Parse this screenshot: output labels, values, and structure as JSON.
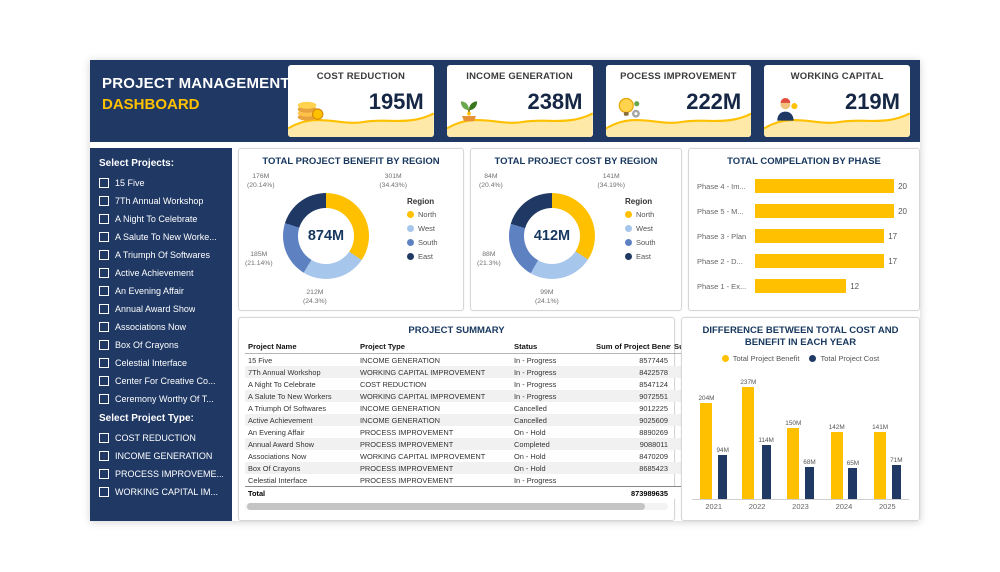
{
  "header": {
    "title_line1": "PROJECT MANAGEMENT",
    "title_line2": "DASHBOARD"
  },
  "colors": {
    "navy": "#1F3864",
    "gold": "#FFC000",
    "wave_fill": "#FFE9A8"
  },
  "kpis": [
    {
      "label": "COST REDUCTION",
      "value": "195M",
      "icon": "coins-icon"
    },
    {
      "label": "INCOME GENERATION",
      "value": "238M",
      "icon": "money-plant-icon"
    },
    {
      "label": "POCESS IMPROVEMENT",
      "value": "222M",
      "icon": "idea-gear-icon"
    },
    {
      "label": "WORKING CAPITAL",
      "value": "219M",
      "icon": "worker-gear-icon"
    }
  ],
  "sidebar": {
    "projects_label": "Select Projects:",
    "projects": [
      "15 Five",
      "7Th Annual Workshop",
      "A Night To Celebrate",
      "A Salute To New Worke...",
      "A Triumph Of Softwares",
      "Active Achievement",
      "An Evening Affair",
      "Annual Award Show",
      "Associations Now",
      "Box Of Crayons",
      "Celestial Interface",
      "Center For Creative Co...",
      "Ceremony Worthy Of T..."
    ],
    "types_label": "Select Project Type:",
    "types": [
      "COST REDUCTION",
      "INCOME GENERATION",
      "PROCESS IMPROVEME...",
      "WORKING CAPITAL IM..."
    ]
  },
  "chart_data": [
    {
      "id": "benefit_by_region",
      "type": "pie",
      "title": "TOTAL PROJECT BENEFIT BY REGION",
      "center_total": "874M",
      "legend_title": "Region",
      "legend_position": "right",
      "categories": [
        "North",
        "West",
        "South",
        "East"
      ],
      "values": [
        301,
        212,
        185,
        176
      ],
      "pcts": [
        34.43,
        24.3,
        21.14,
        20.14
      ],
      "labels": [
        "301M",
        "212M",
        "185M",
        "176M"
      ],
      "pct_labels": [
        "(34.43%)",
        "(24.3%)",
        "(21.14%)",
        "(20.14%)"
      ],
      "colors": [
        "#FFC000",
        "#A7C6EC",
        "#5E81C1",
        "#1F3864"
      ],
      "unit": "M"
    },
    {
      "id": "cost_by_region",
      "type": "pie",
      "title": "TOTAL PROJECT COST BY REGION",
      "center_total": "412M",
      "legend_title": "Region",
      "legend_position": "right",
      "categories": [
        "North",
        "West",
        "South",
        "East"
      ],
      "values": [
        141,
        99,
        88,
        84
      ],
      "pcts": [
        34.19,
        24.1,
        21.3,
        20.4
      ],
      "labels": [
        "141M",
        "99M",
        "88M",
        "84M"
      ],
      "pct_labels": [
        "(34.19%)",
        "(24.1%)",
        "(21.3%)",
        "(20.4%)"
      ],
      "colors": [
        "#FFC000",
        "#A7C6EC",
        "#5E81C1",
        "#1F3864"
      ],
      "unit": "M"
    },
    {
      "id": "completion_by_phase",
      "type": "bar",
      "orientation": "horizontal",
      "title": "TOTAL COMPELATION BY PHASE",
      "categories": [
        "Phase 4 - Im...",
        "Phase 5 - M...",
        "Phase 3 - Plan",
        "Phase 2 - D...",
        "Phase 1 - Ex..."
      ],
      "values": [
        20,
        20,
        17,
        17,
        12
      ],
      "xlim": [
        0,
        20
      ],
      "bar_color": "#FFC000",
      "grid": false
    },
    {
      "id": "project_summary",
      "type": "table",
      "title": "PROJECT SUMMARY",
      "columns": [
        "Project Name",
        "Project Type",
        "Status",
        "Sum of Project Benefit",
        "Su..."
      ],
      "rows": [
        [
          "15 Five",
          "INCOME GENERATION",
          "In - Progress",
          "8577445",
          ""
        ],
        [
          "7Th Annual Workshop",
          "WORKING CAPITAL IMPROVEMENT",
          "In - Progress",
          "8422578",
          ""
        ],
        [
          "A Night To Celebrate",
          "COST REDUCTION",
          "In - Progress",
          "8547124",
          ""
        ],
        [
          "A Salute To New Workers",
          "WORKING CAPITAL IMPROVEMENT",
          "In - Progress",
          "9072551",
          ""
        ],
        [
          "A Triumph Of Softwares",
          "INCOME GENERATION",
          "Cancelled",
          "9012225",
          ""
        ],
        [
          "Active Achievement",
          "INCOME GENERATION",
          "Cancelled",
          "9025609",
          ""
        ],
        [
          "An Evening Affair",
          "PROCESS IMPROVEMENT",
          "On - Hold",
          "8890269",
          ""
        ],
        [
          "Annual Award Show",
          "PROCESS IMPROVEMENT",
          "Completed",
          "9088011",
          ""
        ],
        [
          "Associations Now",
          "WORKING CAPITAL IMPROVEMENT",
          "On - Hold",
          "8470209",
          ""
        ],
        [
          "Box Of Crayons",
          "PROCESS IMPROVEMENT",
          "On - Hold",
          "8685423",
          ""
        ],
        [
          "Celestial Interface",
          "PROCESS IMPROVEMENT",
          "In - Progress",
          "",
          ""
        ]
      ],
      "total_row": [
        "Total",
        "",
        "",
        "873989635",
        ""
      ]
    },
    {
      "id": "cost_benefit_by_year",
      "type": "bar",
      "title": "DIFFERENCE BETWEEN TOTAL COST AND BENEFIT IN EACH YEAR",
      "categories": [
        "2021",
        "2022",
        "2023",
        "2024",
        "2025"
      ],
      "series": [
        {
          "name": "Total Project Benefit",
          "color": "#FFC000",
          "values": [
            204,
            237,
            150,
            142,
            141
          ],
          "labels": [
            "204M",
            "237M",
            "150M",
            "142M",
            "141M"
          ]
        },
        {
          "name": "Total Project Cost",
          "color": "#1F3864",
          "values": [
            94,
            114,
            68,
            65,
            71
          ],
          "labels": [
            "94M",
            "114M",
            "68M",
            "65M",
            "71M"
          ]
        }
      ],
      "ylim": [
        0,
        250
      ],
      "unit": "M",
      "legend_position": "top",
      "grid": false
    }
  ]
}
